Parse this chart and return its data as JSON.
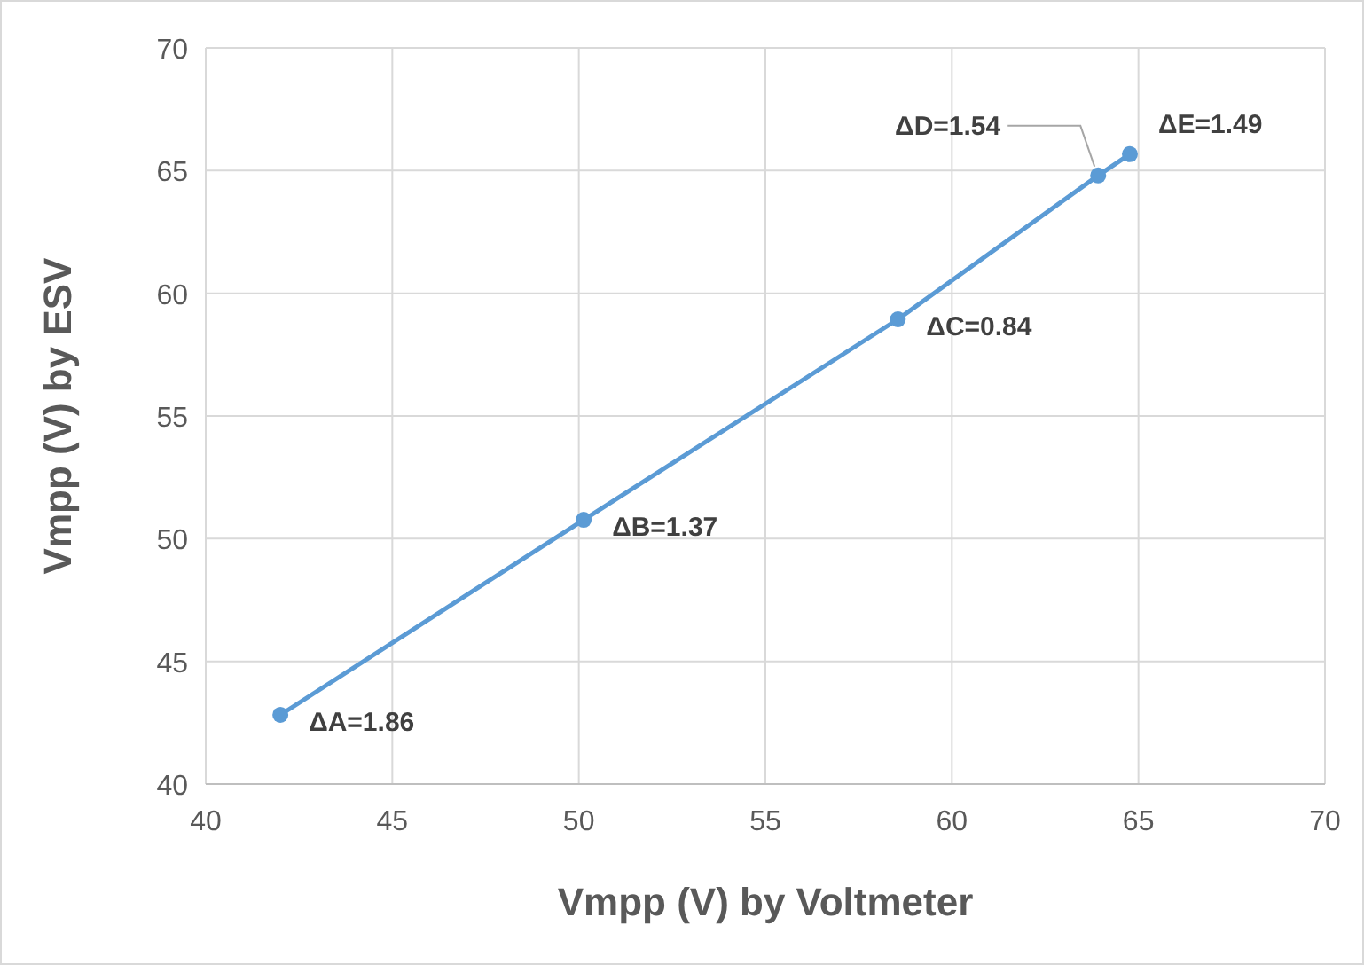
{
  "chart_data": {
    "type": "line",
    "xlabel": "Vmpp (V) by Voltmeter",
    "ylabel": "Vmpp (V) by ESV",
    "x": [
      42.0,
      50.13,
      58.55,
      63.92,
      64.77
    ],
    "series": [
      {
        "color": "#5b9bd5",
        "values": [
          42.82,
          50.77,
          58.94,
          64.8,
          65.67
        ]
      }
    ],
    "xlim": [
      40,
      70
    ],
    "xticks": [
      40,
      45,
      50,
      55,
      60,
      65,
      70
    ],
    "ylim": [
      40,
      70
    ],
    "yticks": [
      40,
      45,
      50,
      55,
      60,
      65,
      70
    ],
    "grid": true,
    "marker": "circle",
    "line_style": "solid",
    "annotations": [
      {
        "text": "ΔA=1.86",
        "x": 42.0,
        "y": 42.82
      },
      {
        "text": "ΔB=1.37",
        "x": 50.13,
        "y": 50.77
      },
      {
        "text": "ΔC=0.84",
        "x": 58.55,
        "y": 58.94
      },
      {
        "text": "ΔD=1.54",
        "x": 63.92,
        "y": 64.8
      },
      {
        "text": "ΔE=1.49",
        "x": 64.77,
        "y": 65.67
      }
    ]
  }
}
